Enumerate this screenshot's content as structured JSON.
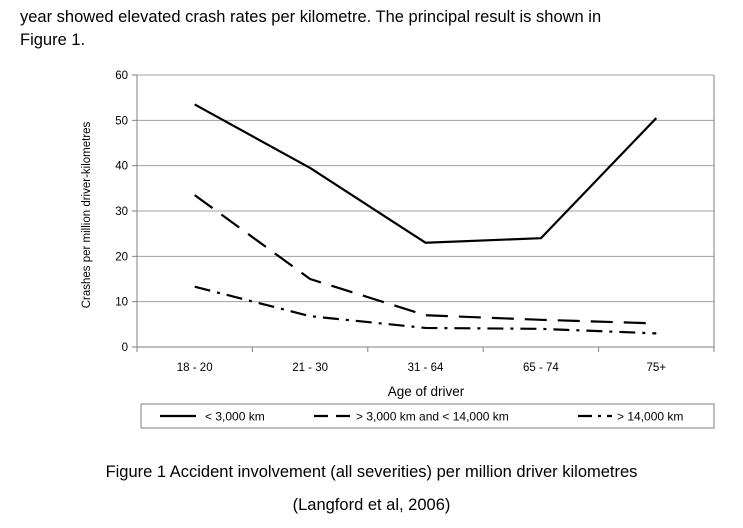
{
  "intro": {
    "line1": "year showed elevated crash rates per kilometre.  The principal result is shown in",
    "line2": "Figure 1."
  },
  "chart_data": {
    "type": "line",
    "title": "",
    "xlabel": "Age of driver",
    "ylabel": "Crashes per million driver-kilometres",
    "categories": [
      "18 - 20",
      "21 - 30",
      "31 - 64",
      "65 - 74",
      "75+"
    ],
    "ylim": [
      0,
      60
    ],
    "yticks": [
      0,
      10,
      20,
      30,
      40,
      50,
      60
    ],
    "grid": true,
    "legend_position": "bottom",
    "series": [
      {
        "name": "< 3,000 km",
        "style": "solid",
        "values": [
          53.5,
          39.5,
          23,
          24,
          50.5
        ]
      },
      {
        "name": "> 3,000 km and < 14,000 km",
        "style": "dashed",
        "values": [
          33.5,
          15,
          7,
          6,
          5.2
        ]
      },
      {
        "name": "> 14,000 km",
        "style": "dash-dot",
        "values": [
          13.3,
          6.8,
          4.2,
          4,
          3
        ]
      }
    ],
    "colors": {
      "line": "#000000",
      "grid": "#a0a0a0",
      "frame": "#808080"
    }
  },
  "caption": {
    "line1": "Figure 1   Accident involvement (all severities) per million driver kilometres",
    "line2": "(Langford et al, 2006)"
  }
}
